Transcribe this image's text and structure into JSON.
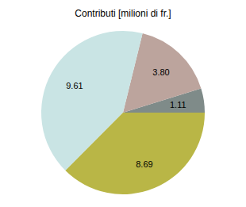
{
  "chart_data": {
    "type": "pie",
    "title": "Contributi [milioni di fr.]",
    "values": [
      1.11,
      3.8,
      9.61,
      8.69
    ],
    "value_labels": [
      "1.11",
      "3.80",
      "9.61",
      "8.69"
    ],
    "colors": [
      "#7f8b89",
      "#bca49d",
      "#c9e4e4",
      "#b9b646"
    ],
    "data_labels": true
  }
}
